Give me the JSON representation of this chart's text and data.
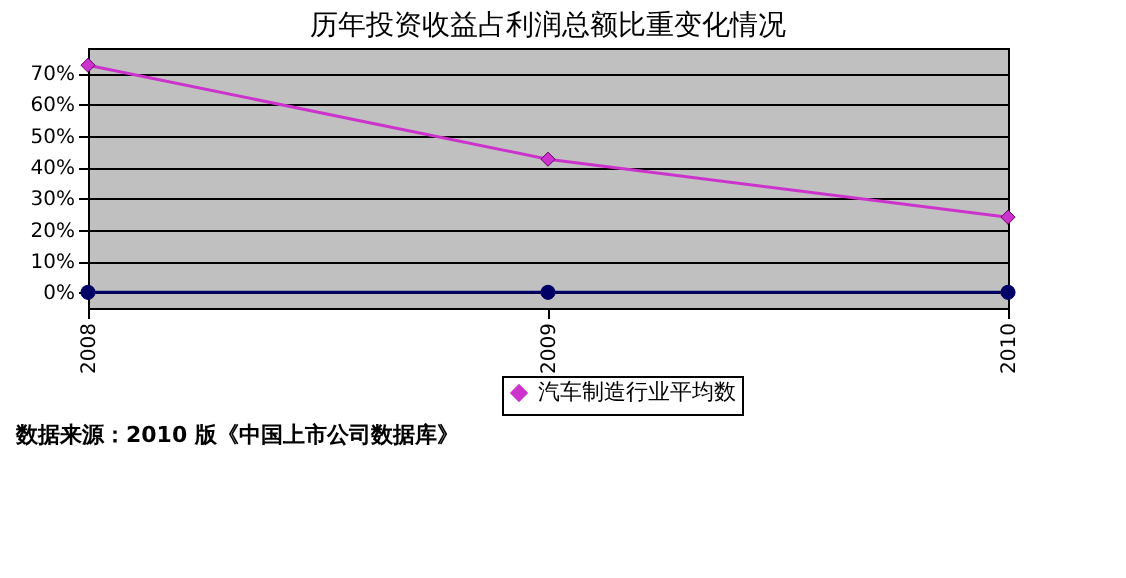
{
  "chart_data": {
    "type": "line",
    "title": "历年投资收益占利润总额比重变化情况",
    "categories": [
      "2008",
      "2009",
      "2010"
    ],
    "series": [
      {
        "color": "#000066",
        "marker": "circle",
        "values": [
          0,
          0,
          0
        ]
      },
      {
        "name": "汽车制造行业平均数",
        "color": "#cc33cc",
        "marker": "diamond",
        "values": [
          72.5,
          42.5,
          24
        ]
      }
    ],
    "ylim": [
      -5,
      78
    ],
    "yticks": [
      {
        "value": 0,
        "label": "0%"
      },
      {
        "value": 10,
        "label": "10%"
      },
      {
        "value": 20,
        "label": "20%"
      },
      {
        "value": 30,
        "label": "30%"
      },
      {
        "value": 40,
        "label": "40%"
      },
      {
        "value": 50,
        "label": "50%"
      },
      {
        "value": 60,
        "label": "60%"
      },
      {
        "value": 70,
        "label": "70%"
      }
    ],
    "grid": "y",
    "legend": "bottom",
    "line_style": "solid",
    "annotations": [
      "数据来源：2010 版《中国上市公司数据库》"
    ]
  }
}
